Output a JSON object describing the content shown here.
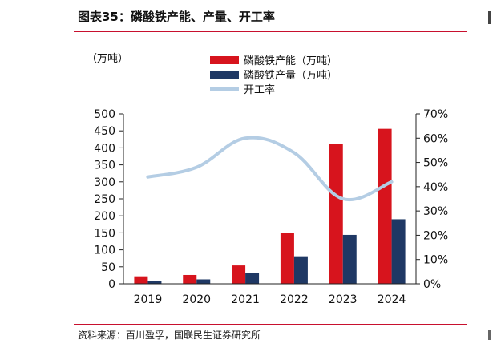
{
  "figure": {
    "title": "图表35：磷酸铁产能、产量、开工率",
    "unit_label": "（万吨）",
    "source": "资料来源：百川盈孚，国联民生证券研究所"
  },
  "chart_data": {
    "type": "bar",
    "categories": [
      "2019",
      "2020",
      "2021",
      "2022",
      "2023",
      "2024"
    ],
    "series": [
      {
        "name": "磷酸铁产能（万吨）",
        "type": "bar",
        "axis": "left",
        "color": "#d7141d",
        "values": [
          22,
          26,
          54,
          150,
          412,
          456
        ]
      },
      {
        "name": "磷酸铁产量（万吨）",
        "type": "bar",
        "axis": "left",
        "color": "#1f3864",
        "values": [
          9,
          13,
          33,
          81,
          144,
          190
        ]
      },
      {
        "name": "开工率",
        "type": "line",
        "axis": "right",
        "color": "#b4cde4",
        "values": [
          0.44,
          0.48,
          0.6,
          0.54,
          0.35,
          0.42
        ]
      }
    ],
    "y_left": {
      "min": 0,
      "max": 500,
      "step": 50,
      "ticks": [
        "0",
        "50",
        "100",
        "150",
        "200",
        "250",
        "300",
        "350",
        "400",
        "450",
        "500"
      ]
    },
    "y_right": {
      "min": 0,
      "max": 0.7,
      "step": 0.1,
      "ticks": [
        "0%",
        "10%",
        "20%",
        "30%",
        "40%",
        "50%",
        "60%",
        "70%"
      ]
    },
    "legend_position": "top",
    "grid": false
  }
}
